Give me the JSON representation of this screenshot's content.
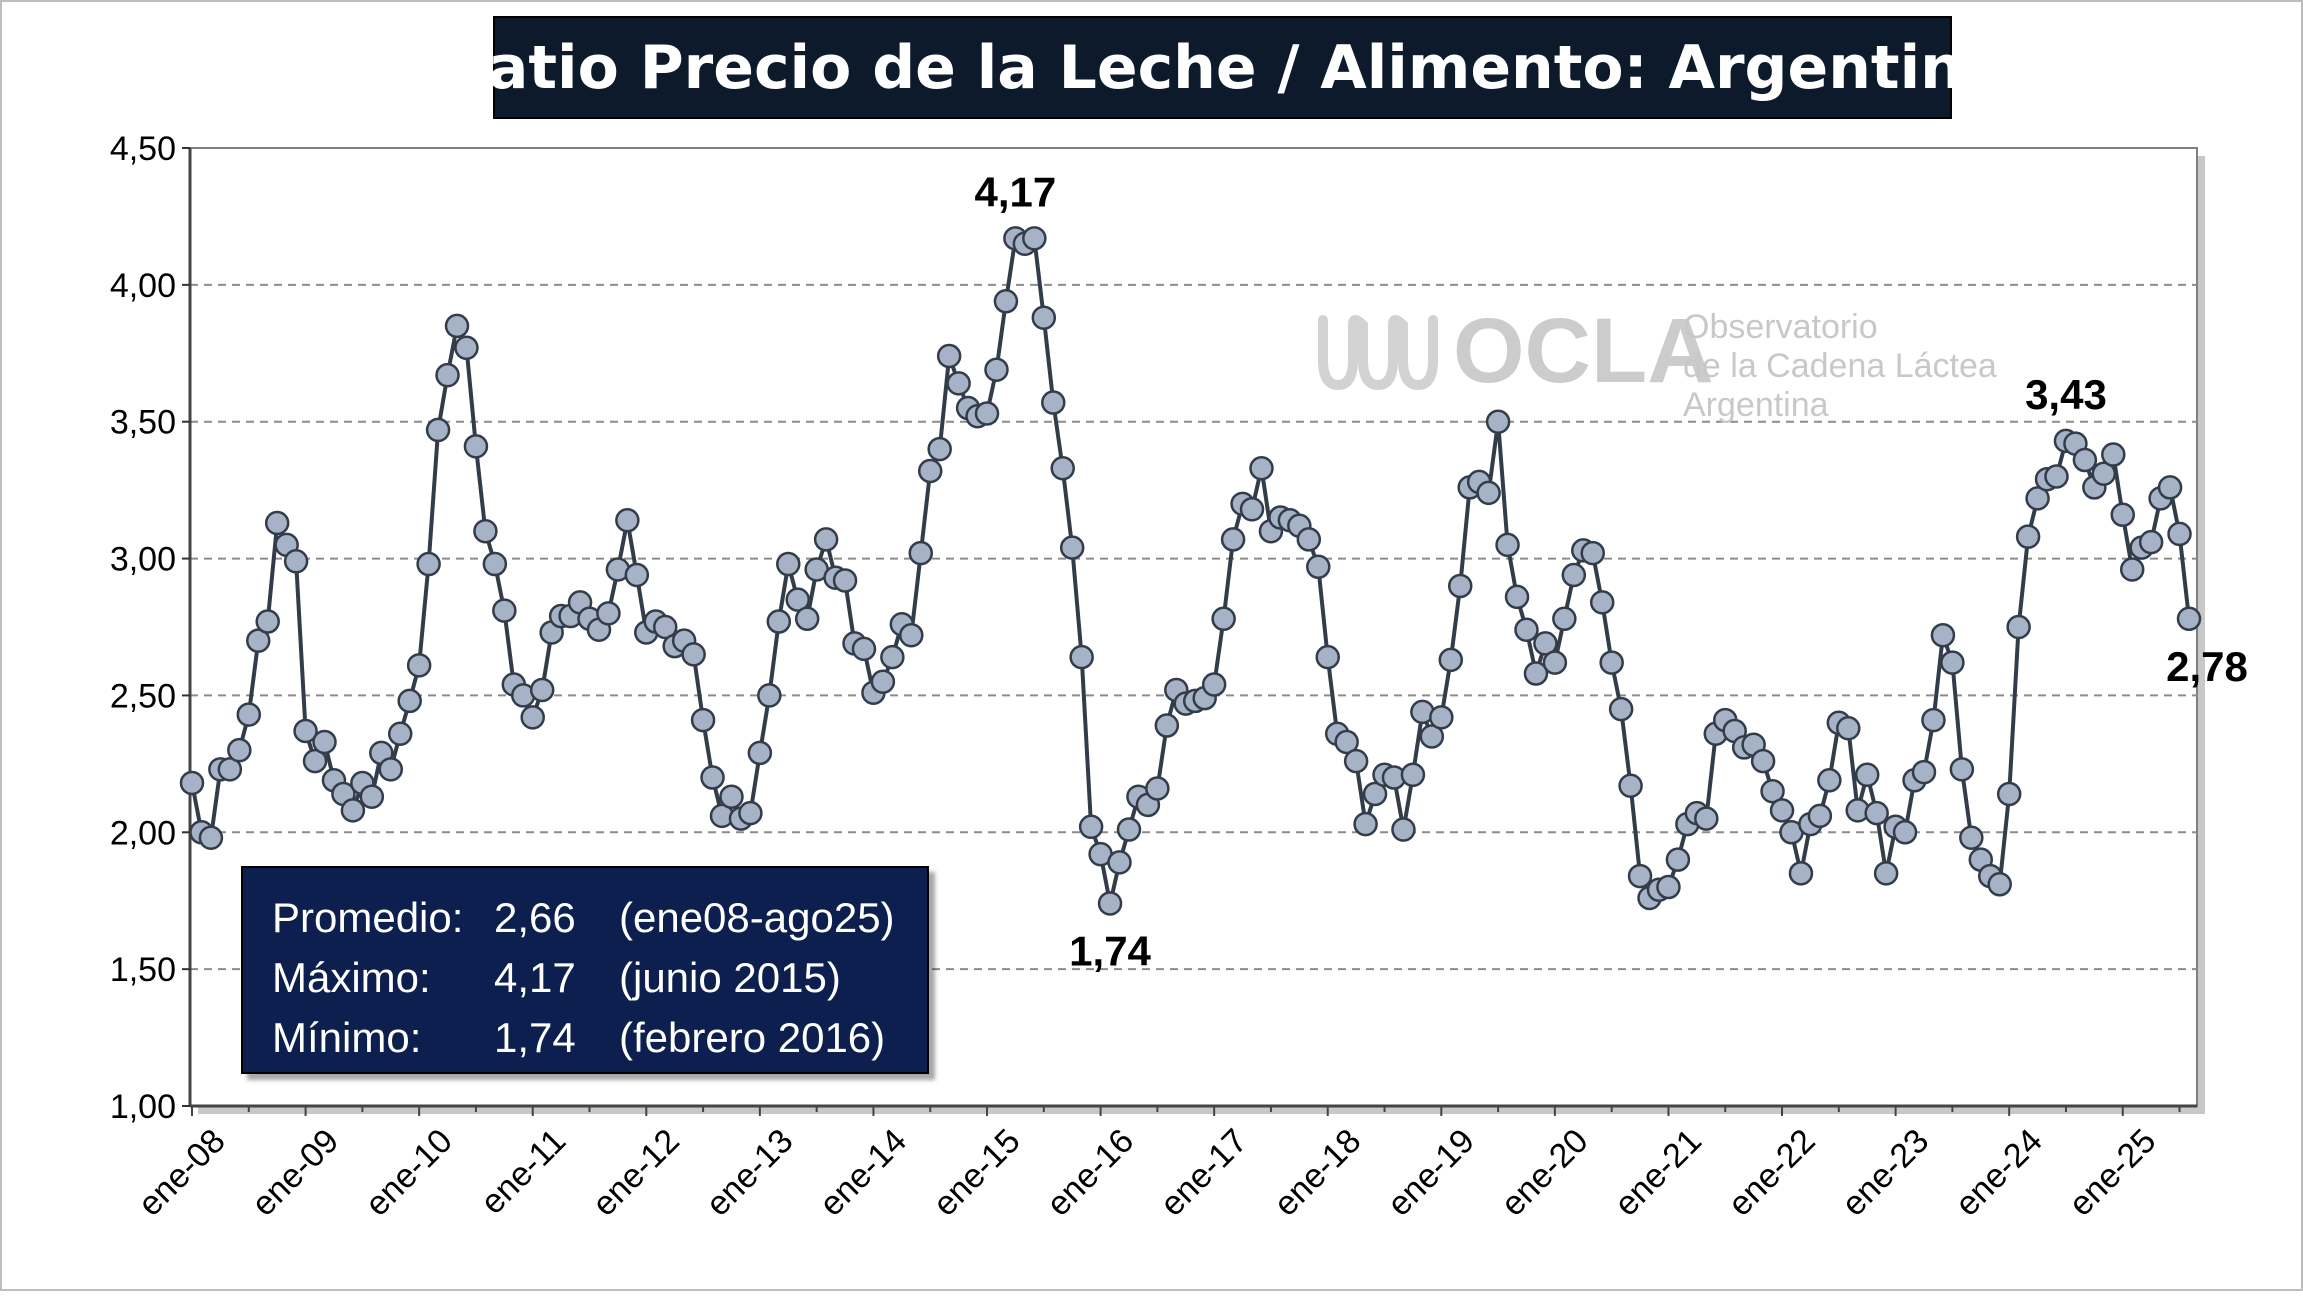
{
  "chart_data": {
    "type": "line",
    "title": "Ratio Precio de la Leche / Alimento: Argentina",
    "ylim": [
      1.0,
      4.5
    ],
    "y_ticks": [
      "1,00",
      "1,50",
      "2,00",
      "2,50",
      "3,00",
      "3,50",
      "4,00",
      "4,50"
    ],
    "x_tick_labels": [
      "ene-08",
      "ene-09",
      "ene-10",
      "ene-11",
      "ene-12",
      "ene-13",
      "ene-14",
      "ene-15",
      "ene-16",
      "ene-17",
      "ene-18",
      "ene-19",
      "ene-20",
      "ene-21",
      "ene-22",
      "ene-23",
      "ene-24",
      "ene-25"
    ],
    "grid": "horizontal dashed",
    "series": [
      {
        "color": "#333d4a",
        "marker_color": "#a6b2c6",
        "start": "ene-08",
        "values": [
          2.18,
          2.0,
          1.98,
          2.23,
          2.23,
          2.3,
          2.43,
          2.7,
          2.77,
          3.13,
          3.05,
          2.99,
          2.37,
          2.26,
          2.33,
          2.19,
          2.14,
          2.08,
          2.18,
          2.13,
          2.29,
          2.23,
          2.36,
          2.48,
          2.61,
          2.98,
          3.47,
          3.67,
          3.85,
          3.77,
          3.41,
          3.1,
          2.98,
          2.81,
          2.54,
          2.5,
          2.42,
          2.52,
          2.73,
          2.79,
          2.79,
          2.84,
          2.78,
          2.74,
          2.8,
          2.96,
          3.14,
          2.94,
          2.73,
          2.77,
          2.75,
          2.68,
          2.7,
          2.65,
          2.41,
          2.2,
          2.06,
          2.13,
          2.05,
          2.07,
          2.29,
          2.5,
          2.77,
          2.98,
          2.85,
          2.78,
          2.96,
          3.07,
          2.93,
          2.92,
          2.69,
          2.67,
          2.51,
          2.55,
          2.64,
          2.76,
          2.72,
          3.02,
          3.32,
          3.4,
          3.74,
          3.64,
          3.55,
          3.52,
          3.53,
          3.69,
          3.94,
          4.17,
          4.15,
          4.17,
          3.88,
          3.57,
          3.33,
          3.04,
          2.64,
          2.02,
          1.92,
          1.74,
          1.89,
          2.01,
          2.13,
          2.1,
          2.16,
          2.39,
          2.52,
          2.47,
          2.48,
          2.49,
          2.54,
          2.78,
          3.07,
          3.2,
          3.18,
          3.33,
          3.1,
          3.15,
          3.14,
          3.12,
          3.07,
          2.97,
          2.64,
          2.36,
          2.33,
          2.26,
          2.03,
          2.14,
          2.21,
          2.2,
          2.01,
          2.21,
          2.44,
          2.35,
          2.42,
          2.63,
          2.9,
          3.26,
          3.28,
          3.24,
          3.5,
          3.05,
          2.86,
          2.74,
          2.58,
          2.69,
          2.62,
          2.78,
          2.94,
          3.03,
          3.02,
          2.84,
          2.62,
          2.45,
          2.17,
          1.84,
          1.76,
          1.79,
          1.8,
          1.9,
          2.03,
          2.07,
          2.05,
          2.36,
          2.41,
          2.37,
          2.31,
          2.32,
          2.26,
          2.15,
          2.08,
          2.0,
          1.85,
          2.03,
          2.06,
          2.19,
          2.4,
          2.38,
          2.08,
          2.21,
          2.07,
          1.85,
          2.02,
          2.0,
          2.19,
          2.22,
          2.41,
          2.72,
          2.62,
          2.23,
          1.98,
          1.9,
          1.84,
          1.81,
          2.14,
          2.75,
          3.08,
          3.22,
          3.29,
          3.3,
          3.43,
          3.42,
          3.36,
          3.26,
          3.31,
          3.38,
          3.16,
          2.96,
          3.04,
          3.06,
          3.22,
          3.26,
          3.09,
          2.78
        ]
      }
    ],
    "annotations": [
      {
        "text": "4,17",
        "month_index": 87
      },
      {
        "text": "1,74",
        "month_index": 97
      },
      {
        "text": "3,43",
        "month_index": 198
      },
      {
        "text": "2,78",
        "month_index": 211
      }
    ]
  },
  "stats": {
    "rows": [
      {
        "label": "Promedio:",
        "value": "2,66",
        "note": "(ene08-ago25)"
      },
      {
        "label": "Máximo:",
        "value": "4,17",
        "note": "(junio 2015)"
      },
      {
        "label": "Mínimo:",
        "value": "1,74",
        "note": "(febrero 2016)"
      }
    ]
  },
  "watermark": {
    "brand": "OCLA",
    "lines": [
      "Observatorio",
      "de la Cadena Láctea",
      "Argentina"
    ],
    "color": "#c8c8c8"
  }
}
